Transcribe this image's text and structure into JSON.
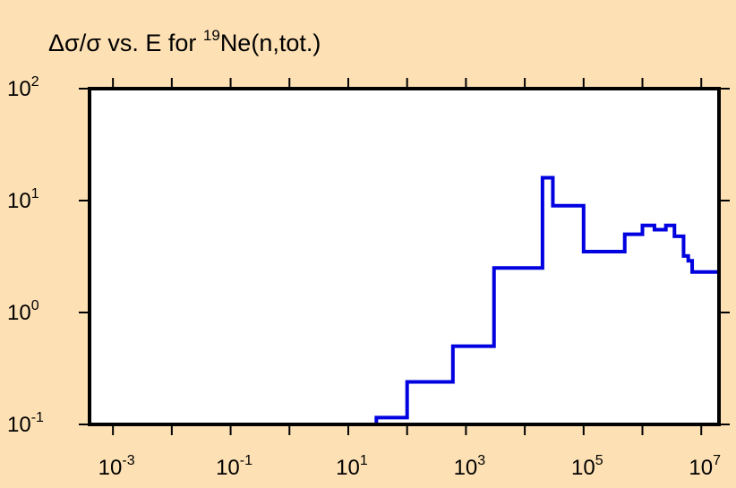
{
  "chart_data": {
    "type": "line",
    "title_prefix": "Δσ/σ vs. E for ",
    "title_isotope_mass": "19",
    "title_suffix": "Ne(n,tot.)",
    "xlabel": "",
    "ylabel": "",
    "x_scale": "log",
    "y_scale": "log",
    "xlim": [
      0.0004,
      20000000
    ],
    "ylim": [
      0.1,
      100
    ],
    "x_tick_labels": [
      {
        "base": "10",
        "exp": "-3",
        "value": 0.001
      },
      {
        "base": "10",
        "exp": "-1",
        "value": 0.1
      },
      {
        "base": "10",
        "exp": "1",
        "value": 10
      },
      {
        "base": "10",
        "exp": "3",
        "value": 1000
      },
      {
        "base": "10",
        "exp": "5",
        "value": 100000
      },
      {
        "base": "10",
        "exp": "7",
        "value": 10000000
      }
    ],
    "y_tick_labels": [
      {
        "base": "10",
        "exp": "2",
        "value": 100
      },
      {
        "base": "10",
        "exp": "1",
        "value": 10
      },
      {
        "base": "10",
        "exp": "0",
        "value": 1
      },
      {
        "base": "10",
        "exp": "-1",
        "value": 0.1
      }
    ],
    "grid": false,
    "background_color": "#fde0b4",
    "plot_background_color": "#ffffff",
    "series": [
      {
        "color": "#0000e0",
        "step": "post",
        "x": [
          0.0004,
          30,
          100,
          600,
          3000,
          20000,
          30000,
          100000,
          500000,
          1000000,
          1600000,
          2500000,
          3500000,
          5000000,
          6000000,
          7000000,
          10000000,
          20000000
        ],
        "y": [
          0.1,
          0.115,
          0.24,
          0.5,
          2.5,
          16,
          9,
          3.5,
          5,
          6,
          5.5,
          6,
          4.8,
          3.2,
          2.9,
          2.3,
          2.3,
          2.3
        ]
      }
    ]
  }
}
